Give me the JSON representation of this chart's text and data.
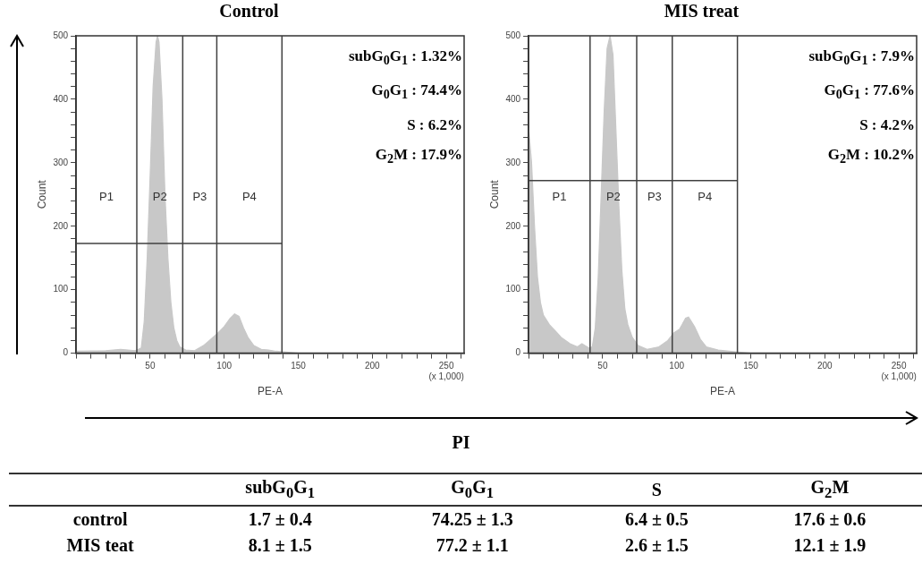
{
  "chart_data": [
    {
      "type": "area",
      "title": "Control",
      "xlabel": "PE-A",
      "ylabel": "Count",
      "color": "#c8c8c8",
      "x": [
        0,
        20,
        30,
        40,
        44,
        46,
        48,
        50,
        52,
        54,
        55,
        56,
        58,
        60,
        62,
        64,
        66,
        68,
        70,
        74,
        80,
        86,
        90,
        95,
        100,
        104,
        107,
        110,
        113,
        116,
        120,
        125,
        130,
        135,
        140,
        150,
        262
      ],
      "values": [
        3,
        4,
        6,
        4,
        8,
        50,
        150,
        280,
        420,
        490,
        500,
        490,
        400,
        250,
        150,
        80,
        40,
        20,
        10,
        5,
        4,
        12,
        20,
        30,
        42,
        55,
        62,
        58,
        40,
        25,
        12,
        6,
        5,
        3,
        2,
        0,
        0
      ],
      "xlim": [
        0,
        262
      ],
      "xticks": [
        {
          "value": 0,
          "label": null
        },
        {
          "value": 10,
          "label": null
        },
        {
          "value": 20,
          "label": null
        },
        {
          "value": 30,
          "label": null
        },
        {
          "value": 40,
          "label": null
        },
        50,
        {
          "value": 60,
          "label": null
        },
        {
          "value": 70,
          "label": null
        },
        {
          "value": 80,
          "label": null
        },
        {
          "value": 90,
          "label": null
        },
        100,
        {
          "value": 110,
          "label": null
        },
        {
          "value": 120,
          "label": null
        },
        {
          "value": 130,
          "label": null
        },
        {
          "value": 140,
          "label": null
        },
        150,
        {
          "value": 160,
          "label": null
        },
        {
          "value": 170,
          "label": null
        },
        {
          "value": 180,
          "label": null
        },
        {
          "value": 190,
          "label": null
        },
        200,
        {
          "value": 210,
          "label": null
        },
        {
          "value": 220,
          "label": null
        },
        {
          "value": 230,
          "label": null
        },
        {
          "value": 240,
          "label": null
        },
        {
          "value": 250,
          "label": "250\n(x 1,000)"
        },
        {
          "value": 260,
          "label": null
        }
      ],
      "ylim": [
        0,
        500
      ],
      "yticks": [
        0,
        {
          "value": 20,
          "label": null
        },
        {
          "value": 40,
          "label": null
        },
        {
          "value": 60,
          "label": null
        },
        {
          "value": 80,
          "label": null
        },
        100,
        {
          "value": 120,
          "label": null
        },
        {
          "value": 140,
          "label": null
        },
        {
          "value": 160,
          "label": null
        },
        {
          "value": 180,
          "label": null
        },
        200,
        {
          "value": 220,
          "label": null
        },
        {
          "value": 240,
          "label": null
        },
        {
          "value": 260,
          "label": null
        },
        {
          "value": 280,
          "label": null
        },
        300,
        {
          "value": 320,
          "label": null
        },
        {
          "value": 340,
          "label": null
        },
        {
          "value": 360,
          "label": null
        },
        {
          "value": 380,
          "label": null
        },
        400,
        {
          "value": 420,
          "label": null
        },
        {
          "value": 440,
          "label": null
        },
        {
          "value": 460,
          "label": null
        },
        {
          "value": 480,
          "label": null
        },
        500
      ],
      "ref_lines": [
        {
          "axis": "x",
          "value": 41,
          "color": "#404040"
        },
        {
          "axis": "x",
          "value": 72,
          "color": "#404040"
        },
        {
          "axis": "x",
          "value": 95,
          "color": "#404040"
        },
        {
          "axis": "x",
          "value": 139,
          "color": "#404040"
        },
        {
          "axis": "y",
          "value": 173,
          "color": "#404040"
        }
      ],
      "annotations": [
        "P1",
        "P2",
        "P3",
        "P4",
        "subG$_{0}$G$_{1}$ : 1.32%",
        "G$_{0}$G$_{1}$ : 74.4%",
        "S : 6.2%",
        "G$_{2}$M : 17.9%"
      ]
    },
    {
      "type": "area",
      "title": "MIS treat",
      "xlabel": "PE-A",
      "ylabel": "Count",
      "color": "#c8c8c8",
      "x": [
        0,
        2,
        4,
        6,
        8,
        10,
        14,
        18,
        22,
        28,
        33,
        36,
        38,
        41,
        43,
        45,
        47,
        49,
        51,
        53,
        55,
        57,
        59,
        61,
        63,
        65,
        67,
        70,
        74,
        80,
        88,
        94,
        98,
        102,
        106,
        108,
        112,
        116,
        120,
        128,
        140,
        150,
        262
      ],
      "values": [
        355,
        300,
        200,
        120,
        80,
        60,
        45,
        35,
        25,
        15,
        10,
        15,
        12,
        8,
        10,
        40,
        120,
        250,
        380,
        480,
        500,
        470,
        350,
        230,
        130,
        70,
        45,
        25,
        12,
        6,
        10,
        20,
        32,
        38,
        55,
        57,
        42,
        22,
        10,
        5,
        2,
        0,
        0
      ],
      "xlim": [
        0,
        262
      ],
      "xticks": [
        {
          "value": 0,
          "label": null
        },
        {
          "value": 10,
          "label": null
        },
        {
          "value": 20,
          "label": null
        },
        {
          "value": 30,
          "label": null
        },
        {
          "value": 40,
          "label": null
        },
        50,
        {
          "value": 60,
          "label": null
        },
        {
          "value": 70,
          "label": null
        },
        {
          "value": 80,
          "label": null
        },
        {
          "value": 90,
          "label": null
        },
        100,
        {
          "value": 110,
          "label": null
        },
        {
          "value": 120,
          "label": null
        },
        {
          "value": 130,
          "label": null
        },
        {
          "value": 140,
          "label": null
        },
        150,
        {
          "value": 160,
          "label": null
        },
        {
          "value": 170,
          "label": null
        },
        {
          "value": 180,
          "label": null
        },
        {
          "value": 190,
          "label": null
        },
        200,
        {
          "value": 210,
          "label": null
        },
        {
          "value": 220,
          "label": null
        },
        {
          "value": 230,
          "label": null
        },
        {
          "value": 240,
          "label": null
        },
        {
          "value": 250,
          "label": "250\n(x 1,000)"
        },
        {
          "value": 260,
          "label": null
        }
      ],
      "ylim": [
        0,
        500
      ],
      "yticks": [
        0,
        {
          "value": 20,
          "label": null
        },
        {
          "value": 40,
          "label": null
        },
        {
          "value": 60,
          "label": null
        },
        {
          "value": 80,
          "label": null
        },
        100,
        {
          "value": 120,
          "label": null
        },
        {
          "value": 140,
          "label": null
        },
        {
          "value": 160,
          "label": null
        },
        {
          "value": 180,
          "label": null
        },
        200,
        {
          "value": 220,
          "label": null
        },
        {
          "value": 240,
          "label": null
        },
        {
          "value": 260,
          "label": null
        },
        {
          "value": 280,
          "label": null
        },
        300,
        {
          "value": 320,
          "label": null
        },
        {
          "value": 340,
          "label": null
        },
        {
          "value": 360,
          "label": null
        },
        {
          "value": 380,
          "label": null
        },
        400,
        {
          "value": 420,
          "label": null
        },
        {
          "value": 440,
          "label": null
        },
        {
          "value": 460,
          "label": null
        },
        {
          "value": 480,
          "label": null
        },
        500
      ],
      "ref_lines": [
        {
          "axis": "x",
          "value": 41.5,
          "color": "#404040"
        },
        {
          "axis": "x",
          "value": 73,
          "color": "#404040"
        },
        {
          "axis": "x",
          "value": 97,
          "color": "#404040"
        },
        {
          "axis": "x",
          "value": 141,
          "color": "#404040"
        },
        {
          "axis": "y",
          "value": 272,
          "color": "#404040"
        }
      ],
      "annotations": [
        "P1",
        "P2",
        "P3",
        "P4",
        "subG$_{0}$G$_{1}$ : 7.9%",
        "G$_{0}$G$_{1}$ : 77.6%",
        "S : 4.2%",
        "G$_{2}$M : 10.2%"
      ]
    },
    {
      "type": "other",
      "annotations": [
        "PI"
      ],
      "categories": [
        "subG$_{0}$G$_{1}$",
        "G$_{0}$G$_{1}$",
        "S",
        "G$_{2}$M"
      ],
      "y_categories": [
        "control",
        "MIS teat"
      ],
      "cell_labels": [
        [
          "1.7 ± 0.4",
          "74.25 ± 1.3",
          "6.4 ± 0.5",
          "17.6 ± 0.6"
        ],
        [
          "8.1 ± 1.5",
          "77.2 ± 1.1",
          "2.6 ± 1.5",
          "12.1 ± 1.9"
        ]
      ]
    }
  ]
}
